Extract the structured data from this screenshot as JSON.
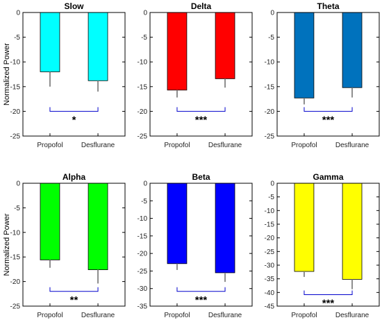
{
  "chart_data": [
    {
      "type": "bar",
      "title": "Slow",
      "ylabel": "Normalized Power",
      "categories": [
        "Propofol",
        "Desflurane"
      ],
      "values": [
        -12,
        -13.8
      ],
      "error": [
        3,
        2.2
      ],
      "ylim": [
        -25,
        0
      ],
      "yticks": [
        0,
        -5,
        -10,
        -15,
        -20,
        -25
      ],
      "ytick_labels": [
        "0",
        "-5",
        "-10",
        "-15",
        "-20",
        "-25"
      ],
      "bar_color": "#00ffff",
      "significance": {
        "label": "*",
        "y": -20
      }
    },
    {
      "type": "bar",
      "title": "Delta",
      "ylabel": "",
      "categories": [
        "Propofol",
        "Desflurane"
      ],
      "values": [
        -15.7,
        -13.4
      ],
      "error": [
        1.5,
        1.8
      ],
      "ylim": [
        -25,
        0
      ],
      "yticks": [
        0,
        -5,
        -10,
        -15,
        -20,
        -25
      ],
      "ytick_labels": [
        "0",
        "-5",
        "-10",
        "-15",
        "-20",
        "-25"
      ],
      "bar_color": "#ff0000",
      "significance": {
        "label": "***",
        "y": -20
      }
    },
    {
      "type": "bar",
      "title": "Theta",
      "ylabel": "",
      "categories": [
        "Propofol",
        "Desflurane"
      ],
      "values": [
        -17.3,
        -15.2
      ],
      "error": [
        1.3,
        2.0
      ],
      "ylim": [
        -25,
        0
      ],
      "yticks": [
        0,
        -5,
        -10,
        -15,
        -20,
        -25
      ],
      "ytick_labels": [
        "0",
        "-5",
        "-10",
        "-15",
        "-20",
        "-25"
      ],
      "bar_color": "#0072bd",
      "significance": {
        "label": "***",
        "y": -20
      }
    },
    {
      "type": "bar",
      "title": "Alpha",
      "ylabel": "Normalized Power",
      "categories": [
        "Propofol",
        "Desflurane"
      ],
      "values": [
        -15.6,
        -17.6
      ],
      "error": [
        1.6,
        2.8
      ],
      "ylim": [
        -25,
        0
      ],
      "yticks": [
        0,
        -5,
        -10,
        -15,
        -20,
        -25
      ],
      "ytick_labels": [
        "0",
        "-5",
        "-10",
        "-15",
        "-20",
        "-25"
      ],
      "bar_color": "#00ff00",
      "significance": {
        "label": "**",
        "y": -22
      }
    },
    {
      "type": "bar",
      "title": "Beta",
      "ylabel": "",
      "categories": [
        "Propofol",
        "Desflurane"
      ],
      "values": [
        -22.9,
        -25.5
      ],
      "error": [
        1.8,
        2.6
      ],
      "ylim": [
        -35,
        0
      ],
      "yticks": [
        0,
        -5,
        -10,
        -15,
        -20,
        -25,
        -30,
        -35
      ],
      "ytick_labels": [
        "0",
        "-5",
        "-10",
        "-15",
        "-20",
        "-25",
        "-30",
        "-35"
      ],
      "bar_color": "#0000ff",
      "significance": {
        "label": "***",
        "y": -30.8
      }
    },
    {
      "type": "bar",
      "title": "Gamma",
      "ylabel": "",
      "categories": [
        "Propofol",
        "Desflurane"
      ],
      "values": [
        -32.3,
        -35.2
      ],
      "error": [
        2.0,
        3.6
      ],
      "ylim": [
        -45,
        0
      ],
      "yticks": [
        0,
        -5,
        -10,
        -15,
        -20,
        -25,
        -30,
        -35,
        -40,
        -45
      ],
      "ytick_labels": [
        "0",
        "-5",
        "-10",
        "-15",
        "-20",
        "-25",
        "-30",
        "-35",
        "-40",
        "-45"
      ],
      "bar_color": "#ffff00",
      "significance": {
        "label": "***",
        "y": -40.8
      }
    }
  ]
}
